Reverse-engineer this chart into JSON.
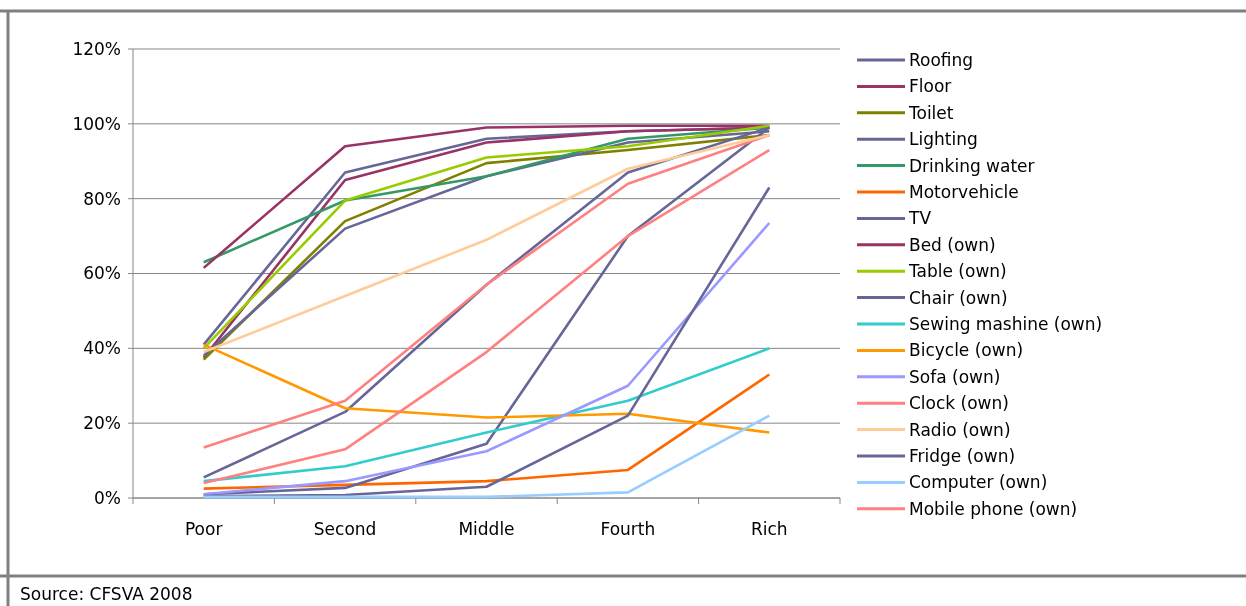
{
  "chart_data": {
    "type": "line",
    "categories": [
      "Poor",
      "Second",
      "Middle",
      "Fourth",
      "Rich"
    ],
    "ylim": [
      0,
      1.2
    ],
    "yticks": [
      {
        "value": 0,
        "label": "0%"
      },
      {
        "value": 0.2,
        "label": "20%"
      },
      {
        "value": 0.4,
        "label": "40%"
      },
      {
        "value": 0.6,
        "label": "60%"
      },
      {
        "value": 0.8,
        "label": "80%"
      },
      {
        "value": 1,
        "label": "100%"
      },
      {
        "value": 1.2,
        "label": "120%"
      }
    ],
    "grid": "y",
    "legend": "right",
    "marker": "none",
    "annotations": [
      "Source: CFSVA 2008"
    ],
    "series": [
      {
        "name": "Roofing",
        "color": "#666699",
        "values": [
          0.41,
          0.87,
          0.96,
          0.98,
          0.99
        ]
      },
      {
        "name": "Floor",
        "color": "#993366",
        "values": [
          0.375,
          0.85,
          0.95,
          0.98,
          0.99
        ]
      },
      {
        "name": "Toilet",
        "color": "#808000",
        "values": [
          0.37,
          0.74,
          0.895,
          0.93,
          0.97
        ]
      },
      {
        "name": "Lighting",
        "color": "#666699",
        "values": [
          0.38,
          0.72,
          0.86,
          0.95,
          0.98
        ]
      },
      {
        "name": "Drinking water",
        "color": "#339966",
        "values": [
          0.63,
          0.795,
          0.86,
          0.96,
          0.99
        ]
      },
      {
        "name": "Motorvehicle",
        "color": "#ff6600",
        "values": [
          0.025,
          0.035,
          0.045,
          0.075,
          0.33
        ]
      },
      {
        "name": "TV",
        "color": "#666699",
        "values": [
          0.055,
          0.23,
          0.57,
          0.87,
          0.99
        ]
      },
      {
        "name": "Bed (own)",
        "color": "#993366",
        "values": [
          0.615,
          0.94,
          0.99,
          0.995,
          0.995
        ]
      },
      {
        "name": "Table (own)",
        "color": "#99cc00",
        "values": [
          0.4,
          0.795,
          0.91,
          0.94,
          0.995
        ]
      },
      {
        "name": "Chair (own)",
        "color": "#666699",
        "values": [
          0.01,
          0.027,
          0.145,
          0.7,
          0.99
        ]
      },
      {
        "name": "Sewing mashine (own)",
        "color": "#33cccc",
        "values": [
          0.045,
          0.085,
          0.175,
          0.26,
          0.4
        ]
      },
      {
        "name": "Bicycle (own)",
        "color": "#ff9900",
        "values": [
          0.41,
          0.24,
          0.215,
          0.225,
          0.175
        ]
      },
      {
        "name": "Sofa (own)",
        "color": "#9999ff",
        "values": [
          0.01,
          0.045,
          0.125,
          0.3,
          0.735
        ]
      },
      {
        "name": "Clock (own)",
        "color": "#ff8080",
        "values": [
          0.135,
          0.26,
          0.57,
          0.84,
          0.97
        ]
      },
      {
        "name": "Radio (own)",
        "color": "#ffcc99",
        "values": [
          0.39,
          0.54,
          0.69,
          0.88,
          0.97
        ]
      },
      {
        "name": "Fridge (own)",
        "color": "#666699",
        "values": [
          0.005,
          0.008,
          0.03,
          0.22,
          0.83
        ]
      },
      {
        "name": "Computer (own)",
        "color": "#99ccff",
        "values": [
          0.003,
          0.003,
          0.003,
          0.015,
          0.22
        ]
      },
      {
        "name": "Mobile phone (own)",
        "color": "#ff8080",
        "values": [
          0.04,
          0.13,
          0.39,
          0.7,
          0.93
        ]
      }
    ]
  }
}
